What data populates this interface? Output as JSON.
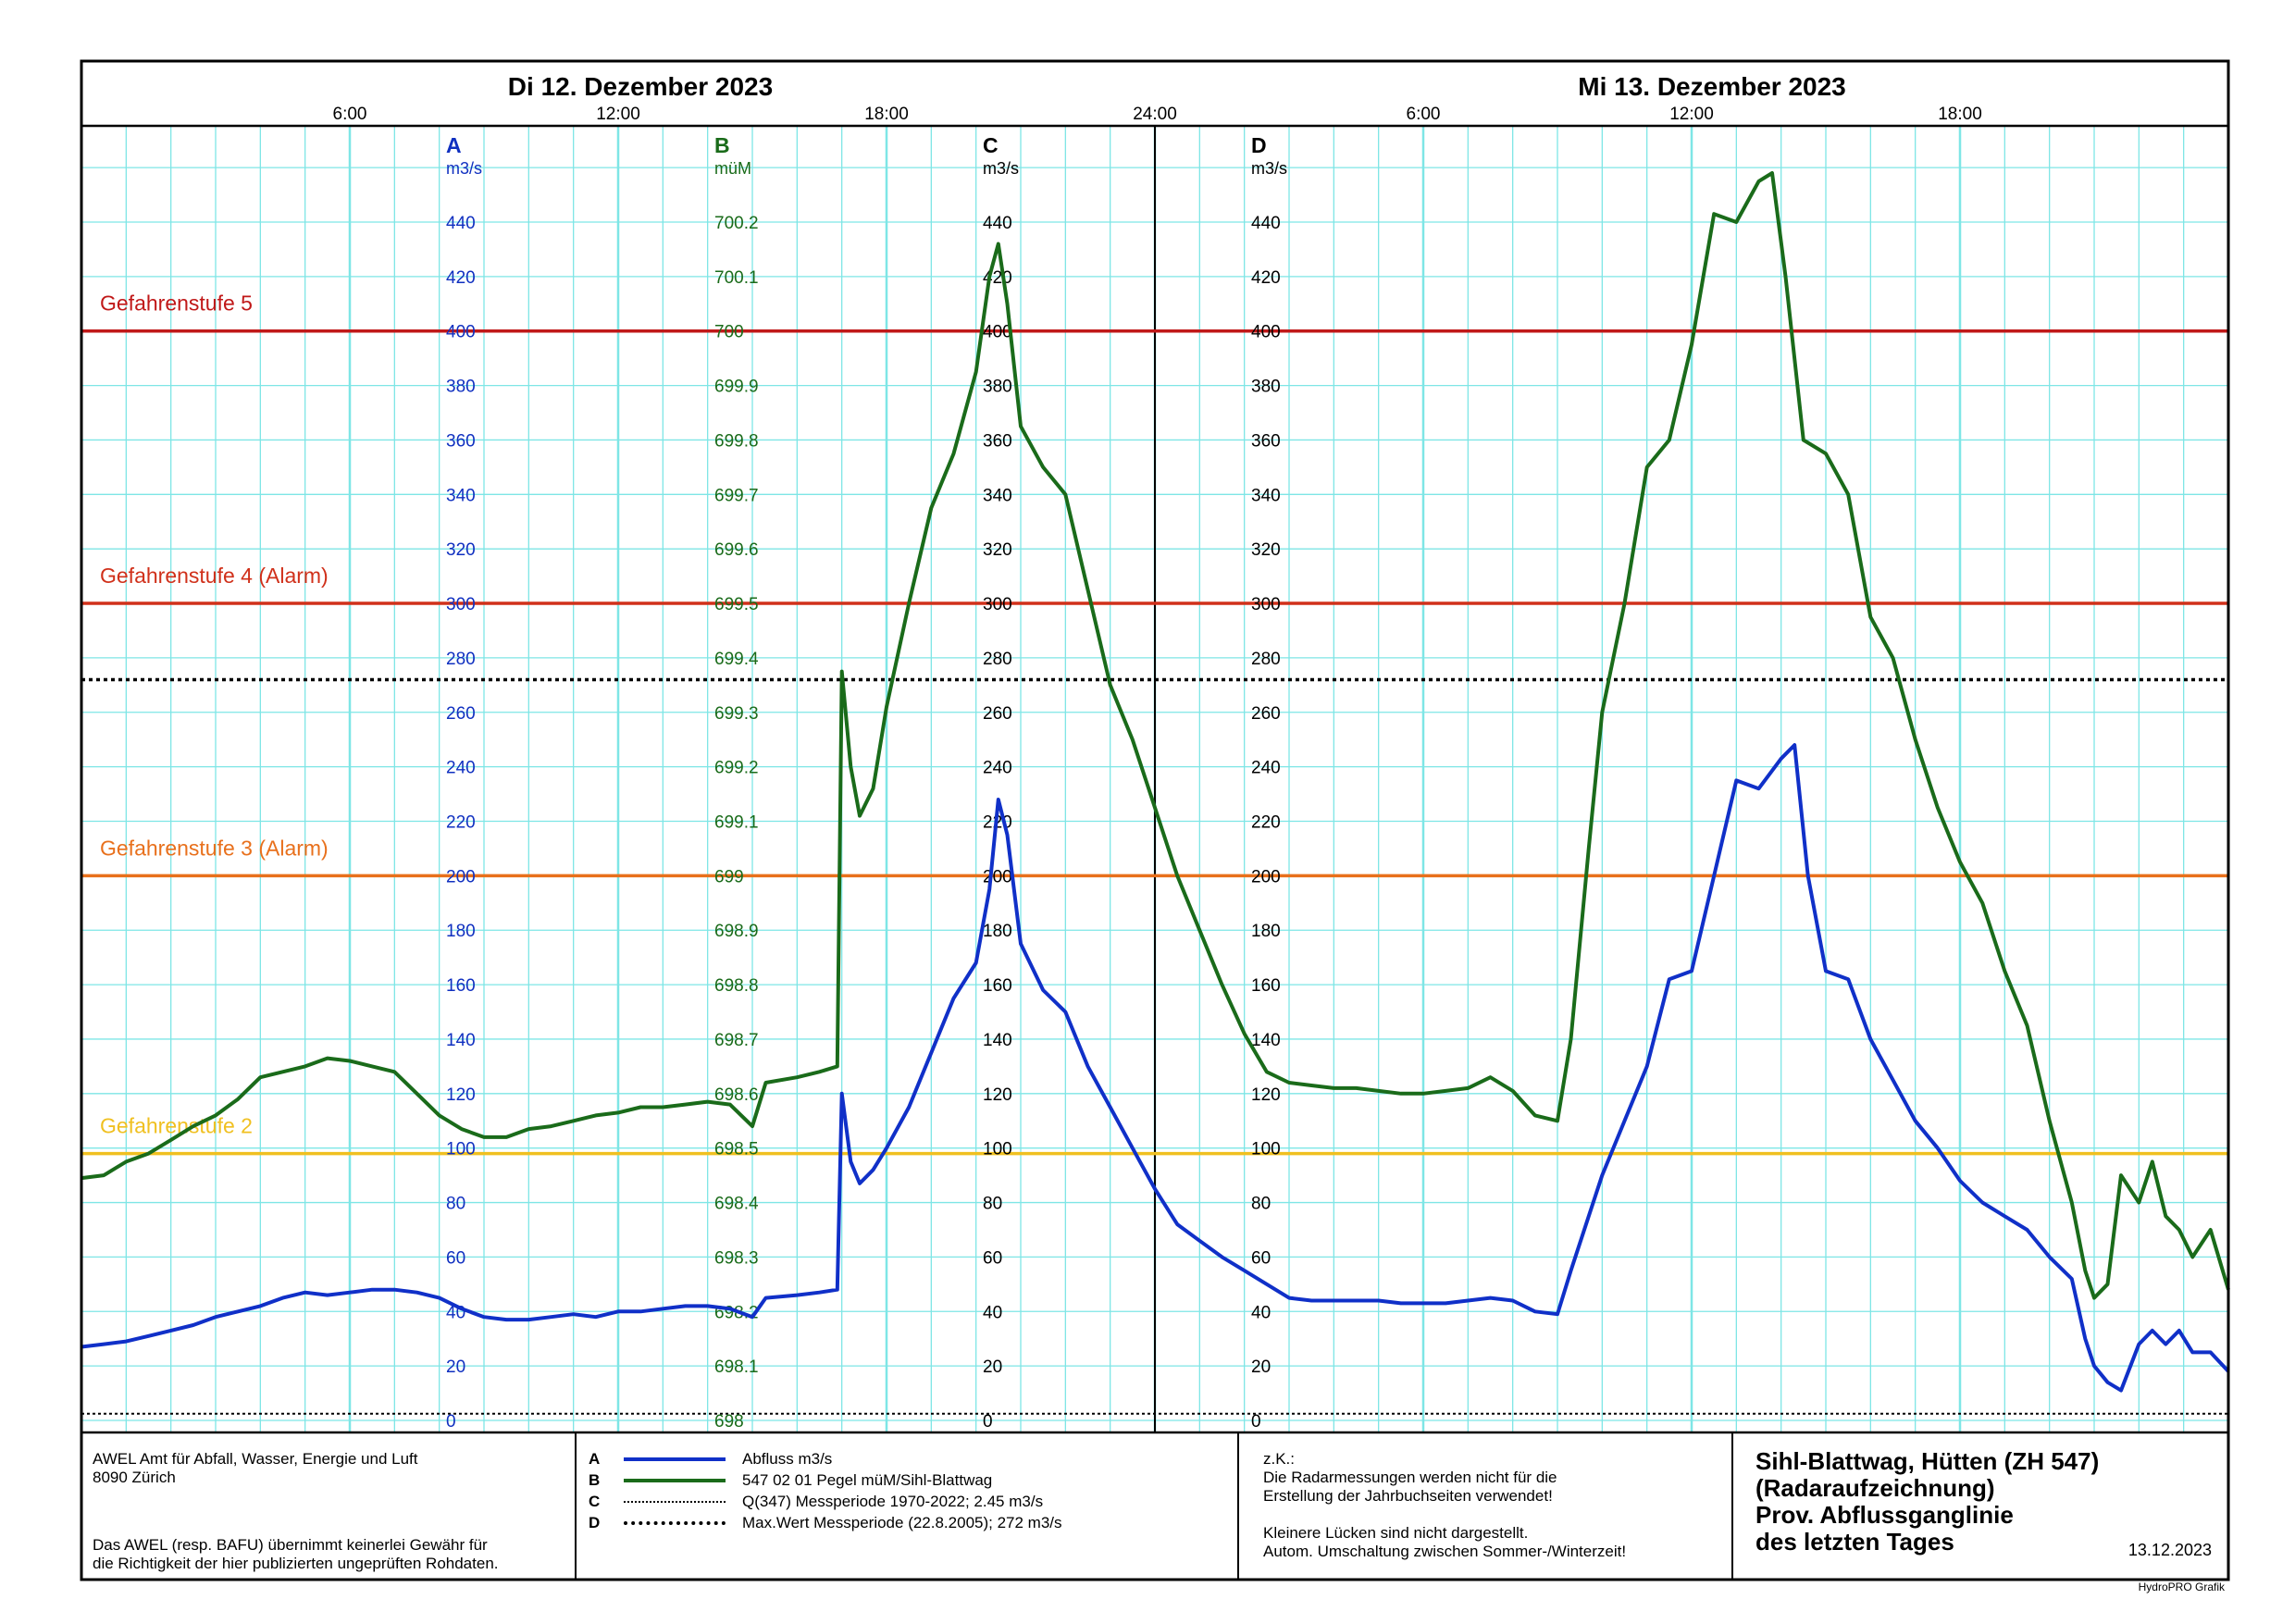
{
  "header": {
    "day1": "Di  12. Dezember  2023",
    "day2": "Mi  13. Dezember  2023",
    "times": [
      {
        "h": 6,
        "label": "6:00"
      },
      {
        "h": 12,
        "label": "12:00"
      },
      {
        "h": 18,
        "label": "18:00"
      },
      {
        "h": 24,
        "label": "24:00"
      },
      {
        "h": 30,
        "label": "6:00"
      },
      {
        "h": 36,
        "label": "12:00"
      },
      {
        "h": 42,
        "label": "18:00"
      }
    ]
  },
  "chart_data": {
    "type": "line",
    "x_unit": "hours since 12.12.2023 00:00",
    "xlim": [
      0,
      48
    ],
    "axes": [
      {
        "letter": "A",
        "unit": "m3/s",
        "color": "#1030c0",
        "ticks": [
          "440",
          "420",
          "400",
          "380",
          "360",
          "340",
          "320",
          "300",
          "280",
          "260",
          "240",
          "220",
          "200",
          "180",
          "160",
          "140",
          "120",
          "100",
          "80",
          "60",
          "40",
          "20",
          "0"
        ]
      },
      {
        "letter": "B",
        "unit": "müM",
        "color": "#1a6b1a",
        "ticks": [
          "700.2",
          "700.1",
          "700",
          "699.9",
          "699.8",
          "699.7",
          "699.6",
          "699.5",
          "699.4",
          "699.3",
          "699.2",
          "699.1",
          "699",
          "698.9",
          "698.8",
          "698.7",
          "698.6",
          "698.5",
          "698.4",
          "698.3",
          "698.2",
          "698.1",
          "698"
        ]
      },
      {
        "letter": "C",
        "unit": "m3/s",
        "color": "#000000",
        "ticks": [
          "440",
          "420",
          "400",
          "380",
          "360",
          "340",
          "320",
          "300",
          "280",
          "260",
          "240",
          "220",
          "200",
          "180",
          "160",
          "140",
          "120",
          "100",
          "80",
          "60",
          "40",
          "20",
          "0"
        ]
      },
      {
        "letter": "D",
        "unit": "m3/s",
        "color": "#000000",
        "ticks": [
          "440",
          "420",
          "400",
          "380",
          "360",
          "340",
          "320",
          "300",
          "280",
          "260",
          "240",
          "220",
          "200",
          "180",
          "160",
          "140",
          "120",
          "100",
          "80",
          "60",
          "40",
          "20",
          "0"
        ]
      }
    ],
    "ylim": [
      0,
      440
    ],
    "thresholds": [
      {
        "label": "Gefahrenstufe 5",
        "value": 400,
        "color": "#c01818"
      },
      {
        "label": "Gefahrenstufe 4 (Alarm)",
        "value": 300,
        "color": "#d0301a"
      },
      {
        "label": "Gefahrenstufe 3 (Alarm)",
        "value": 200,
        "color": "#e8701c"
      },
      {
        "label": "Gefahrenstufe 2",
        "value": 98,
        "color": "#f0c020"
      }
    ],
    "reference_lines": [
      {
        "value": 272,
        "style": "dotted"
      },
      {
        "value": 2.45,
        "style": "dotted"
      }
    ],
    "series": [
      {
        "name": "Abfluss m3/s",
        "color": "#1030c8",
        "points": [
          [
            0,
            27
          ],
          [
            0.5,
            28
          ],
          [
            1,
            29
          ],
          [
            1.5,
            31
          ],
          [
            2,
            33
          ],
          [
            2.5,
            35
          ],
          [
            3,
            38
          ],
          [
            3.5,
            40
          ],
          [
            4,
            42
          ],
          [
            4.5,
            45
          ],
          [
            5,
            47
          ],
          [
            5.5,
            46
          ],
          [
            6,
            47
          ],
          [
            6.5,
            48
          ],
          [
            7,
            48
          ],
          [
            7.5,
            47
          ],
          [
            8,
            45
          ],
          [
            8.5,
            41
          ],
          [
            9,
            38
          ],
          [
            9.5,
            37
          ],
          [
            10,
            37
          ],
          [
            10.5,
            38
          ],
          [
            11,
            39
          ],
          [
            11.5,
            38
          ],
          [
            12,
            40
          ],
          [
            12.5,
            40
          ],
          [
            13,
            41
          ],
          [
            13.5,
            42
          ],
          [
            14,
            42
          ],
          [
            14.5,
            41
          ],
          [
            15,
            38
          ],
          [
            15.3,
            45
          ],
          [
            16,
            46
          ],
          [
            16.5,
            47
          ],
          [
            16.9,
            48
          ],
          [
            17,
            120
          ],
          [
            17.2,
            95
          ],
          [
            17.4,
            87
          ],
          [
            17.7,
            92
          ],
          [
            18,
            100
          ],
          [
            18.5,
            115
          ],
          [
            19,
            135
          ],
          [
            19.5,
            155
          ],
          [
            20,
            168
          ],
          [
            20.3,
            195
          ],
          [
            20.5,
            228
          ],
          [
            20.7,
            215
          ],
          [
            21,
            175
          ],
          [
            21.5,
            158
          ],
          [
            22,
            150
          ],
          [
            22.5,
            130
          ],
          [
            23,
            115
          ],
          [
            23.5,
            100
          ],
          [
            24,
            85
          ],
          [
            24.5,
            72
          ],
          [
            25,
            66
          ],
          [
            25.5,
            60
          ],
          [
            26,
            55
          ],
          [
            26.5,
            50
          ],
          [
            27,
            45
          ],
          [
            27.5,
            44
          ],
          [
            28,
            44
          ],
          [
            28.5,
            44
          ],
          [
            29,
            44
          ],
          [
            29.5,
            43
          ],
          [
            30,
            43
          ],
          [
            30.5,
            43
          ],
          [
            31,
            44
          ],
          [
            31.5,
            45
          ],
          [
            32,
            44
          ],
          [
            32.5,
            40
          ],
          [
            33,
            39
          ],
          [
            33.3,
            55
          ],
          [
            33.7,
            75
          ],
          [
            34,
            90
          ],
          [
            34.5,
            110
          ],
          [
            35,
            130
          ],
          [
            35.5,
            162
          ],
          [
            36,
            165
          ],
          [
            36.5,
            200
          ],
          [
            37,
            235
          ],
          [
            37.5,
            232
          ],
          [
            38,
            243
          ],
          [
            38.3,
            248
          ],
          [
            38.6,
            200
          ],
          [
            39,
            165
          ],
          [
            39.5,
            162
          ],
          [
            40,
            140
          ],
          [
            40.5,
            125
          ],
          [
            41,
            110
          ],
          [
            41.5,
            100
          ],
          [
            42,
            88
          ],
          [
            42.5,
            80
          ],
          [
            43,
            75
          ],
          [
            43.5,
            70
          ],
          [
            44,
            60
          ],
          [
            44.5,
            52
          ],
          [
            44.8,
            30
          ],
          [
            45,
            20
          ],
          [
            45.3,
            14
          ],
          [
            45.6,
            11
          ],
          [
            46,
            28
          ],
          [
            46.3,
            33
          ],
          [
            46.6,
            28
          ],
          [
            46.9,
            33
          ],
          [
            47.2,
            25
          ],
          [
            47.6,
            25
          ],
          [
            48,
            18
          ]
        ]
      },
      {
        "name": "547 02 01  Pegel müM/Sihl-Blattwag",
        "color": "#1a6b1a",
        "points": [
          [
            0,
            89
          ],
          [
            0.5,
            90
          ],
          [
            1,
            95
          ],
          [
            1.5,
            98
          ],
          [
            2,
            103
          ],
          [
            2.5,
            108
          ],
          [
            3,
            112
          ],
          [
            3.5,
            118
          ],
          [
            4,
            126
          ],
          [
            4.5,
            128
          ],
          [
            5,
            130
          ],
          [
            5.5,
            133
          ],
          [
            6,
            132
          ],
          [
            6.5,
            130
          ],
          [
            7,
            128
          ],
          [
            7.5,
            120
          ],
          [
            8,
            112
          ],
          [
            8.5,
            107
          ],
          [
            9,
            104
          ],
          [
            9.5,
            104
          ],
          [
            10,
            107
          ],
          [
            10.5,
            108
          ],
          [
            11,
            110
          ],
          [
            11.5,
            112
          ],
          [
            12,
            113
          ],
          [
            12.5,
            115
          ],
          [
            13,
            115
          ],
          [
            13.5,
            116
          ],
          [
            14,
            117
          ],
          [
            14.5,
            116
          ],
          [
            15,
            108
          ],
          [
            15.3,
            124
          ],
          [
            16,
            126
          ],
          [
            16.5,
            128
          ],
          [
            16.9,
            130
          ],
          [
            17,
            275
          ],
          [
            17.2,
            240
          ],
          [
            17.4,
            222
          ],
          [
            17.7,
            232
          ],
          [
            18,
            262
          ],
          [
            18.5,
            300
          ],
          [
            19,
            335
          ],
          [
            19.5,
            355
          ],
          [
            20,
            385
          ],
          [
            20.3,
            420
          ],
          [
            20.5,
            432
          ],
          [
            20.7,
            410
          ],
          [
            21,
            365
          ],
          [
            21.5,
            350
          ],
          [
            22,
            340
          ],
          [
            22.5,
            305
          ],
          [
            23,
            270
          ],
          [
            23.5,
            250
          ],
          [
            24,
            225
          ],
          [
            24.5,
            200
          ],
          [
            25,
            180
          ],
          [
            25.5,
            160
          ],
          [
            26,
            142
          ],
          [
            26.5,
            128
          ],
          [
            27,
            124
          ],
          [
            27.5,
            123
          ],
          [
            28,
            122
          ],
          [
            28.5,
            122
          ],
          [
            29,
            121
          ],
          [
            29.5,
            120
          ],
          [
            30,
            120
          ],
          [
            30.5,
            121
          ],
          [
            31,
            122
          ],
          [
            31.5,
            126
          ],
          [
            32,
            121
          ],
          [
            32.5,
            112
          ],
          [
            33,
            110
          ],
          [
            33.3,
            140
          ],
          [
            33.7,
            210
          ],
          [
            34,
            260
          ],
          [
            34.5,
            300
          ],
          [
            35,
            350
          ],
          [
            35.5,
            360
          ],
          [
            36,
            395
          ],
          [
            36.5,
            443
          ],
          [
            37,
            440
          ],
          [
            37.5,
            455
          ],
          [
            37.8,
            458
          ],
          [
            38.1,
            420
          ],
          [
            38.5,
            360
          ],
          [
            39,
            355
          ],
          [
            39.5,
            340
          ],
          [
            40,
            295
          ],
          [
            40.5,
            280
          ],
          [
            41,
            250
          ],
          [
            41.5,
            225
          ],
          [
            42,
            205
          ],
          [
            42.5,
            190
          ],
          [
            43,
            165
          ],
          [
            43.5,
            145
          ],
          [
            44,
            110
          ],
          [
            44.5,
            80
          ],
          [
            44.8,
            55
          ],
          [
            45,
            45
          ],
          [
            45.3,
            50
          ],
          [
            45.6,
            90
          ],
          [
            46,
            80
          ],
          [
            46.3,
            95
          ],
          [
            46.6,
            75
          ],
          [
            46.9,
            70
          ],
          [
            47.2,
            60
          ],
          [
            47.6,
            70
          ],
          [
            48,
            48
          ]
        ]
      }
    ]
  },
  "footer": {
    "org_line1": "AWEL  Amt für Abfall, Wasser, Energie und Luft",
    "org_line2": "8090 Zürich",
    "disclaimer_line1": "Das AWEL (resp. BAFU) übernimmt keinerlei Gewähr für",
    "disclaimer_line2": "die Richtigkeit der hier publizierten ungeprüften Rohdaten.",
    "legend": [
      {
        "key": "A",
        "text": "Abfluss m3/s",
        "style": "solid-blue"
      },
      {
        "key": "B",
        "text": "547 02 01  Pegel müM/Sihl-Blattwag",
        "style": "solid-green"
      },
      {
        "key": "C",
        "text": "Q(347) Messperiode 1970-2022;  2.45 m3/s",
        "style": "dotted-thin"
      },
      {
        "key": "D",
        "text": "Max.Wert Messperiode (22.8.2005);  272 m3/s",
        "style": "dotted-thick"
      }
    ],
    "note_lines": [
      "z.K.:",
      "Die Radarmessungen werden nicht für die",
      "Erstellung der Jahrbuchseiten verwendet!",
      "",
      "Kleinere Lücken sind nicht dargestellt.",
      "Autom. Umschaltung zwischen Sommer-/Winterzeit!"
    ],
    "title_lines": [
      "Sihl-Blattwag, Hütten (ZH 547)",
      "(Radaraufzeichnung)",
      "Prov. Abflussganglinie",
      "des letzten Tages"
    ],
    "date": "13.12.2023",
    "credit": "HydroPRO Grafik"
  }
}
